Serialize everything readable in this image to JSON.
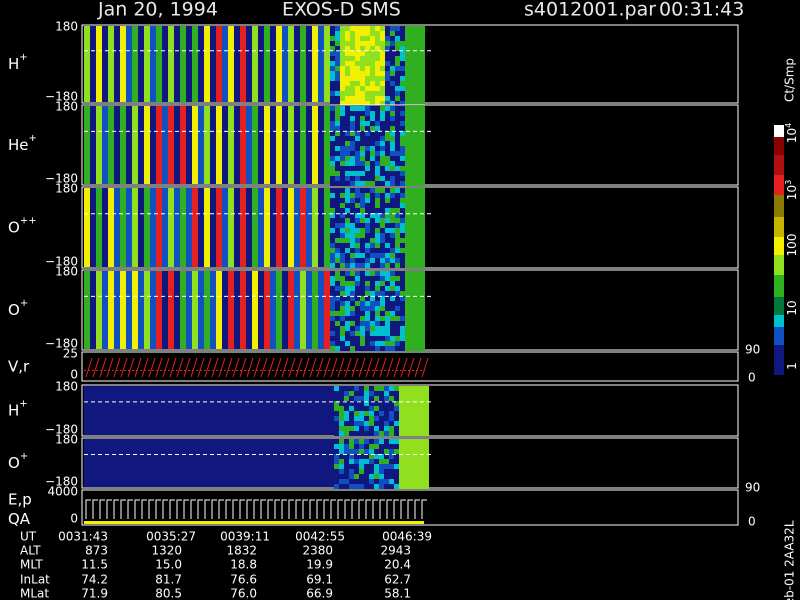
{
  "header": {
    "date": "Jan 20, 1994",
    "instrument": "EXOS-D SMS",
    "file": "s4012001.par",
    "time": "00:31:43"
  },
  "panels": [
    {
      "label": "H",
      "sup": "+",
      "top": "180",
      "bottom": "−180"
    },
    {
      "label": "He",
      "sup": "+",
      "top": "180",
      "bottom": "−180"
    },
    {
      "label": "O",
      "sup": "++",
      "top": "180",
      "bottom": "−180"
    },
    {
      "label": "O",
      "sup": "+",
      "top": "180",
      "bottom": "−180"
    },
    {
      "label": "V,r",
      "top": "25",
      "bottom": "0",
      "right_top": "90",
      "right_bottom": "0"
    },
    {
      "label": "H",
      "sup": "+",
      "top": "180",
      "bottom": "−180"
    },
    {
      "label": "O",
      "sup": "+",
      "top": "180",
      "bottom": "−180"
    },
    {
      "label": "E,p",
      "label2": "QA",
      "top": "4000",
      "bottom": "0",
      "right_top": "90",
      "right_bottom": "0"
    }
  ],
  "colorbar": {
    "title": "Ct/Smp",
    "labels": [
      {
        "base": "10",
        "exp": "4"
      },
      {
        "base": "10",
        "exp": "3"
      },
      {
        "base": "100"
      },
      {
        "base": "10"
      },
      {
        "base": "1"
      }
    ]
  },
  "table": {
    "rows": [
      [
        "UT",
        "0031:43",
        "0035:27",
        "0039:11",
        "0042:55",
        "0046:39"
      ],
      [
        "ALT",
        "873",
        "1320",
        "1832",
        "2380",
        "2943"
      ],
      [
        "MLT",
        "11.5",
        "15.0",
        "18.8",
        "19.9",
        "20.4"
      ],
      [
        "InLat",
        "74.2",
        "81.7",
        "76.6",
        "69.1",
        "62.7"
      ],
      [
        "MLat",
        "71.9",
        "80.5",
        "76.0",
        "66.9",
        "58.1"
      ]
    ]
  },
  "footer": "Feb-01 2AA32L"
}
